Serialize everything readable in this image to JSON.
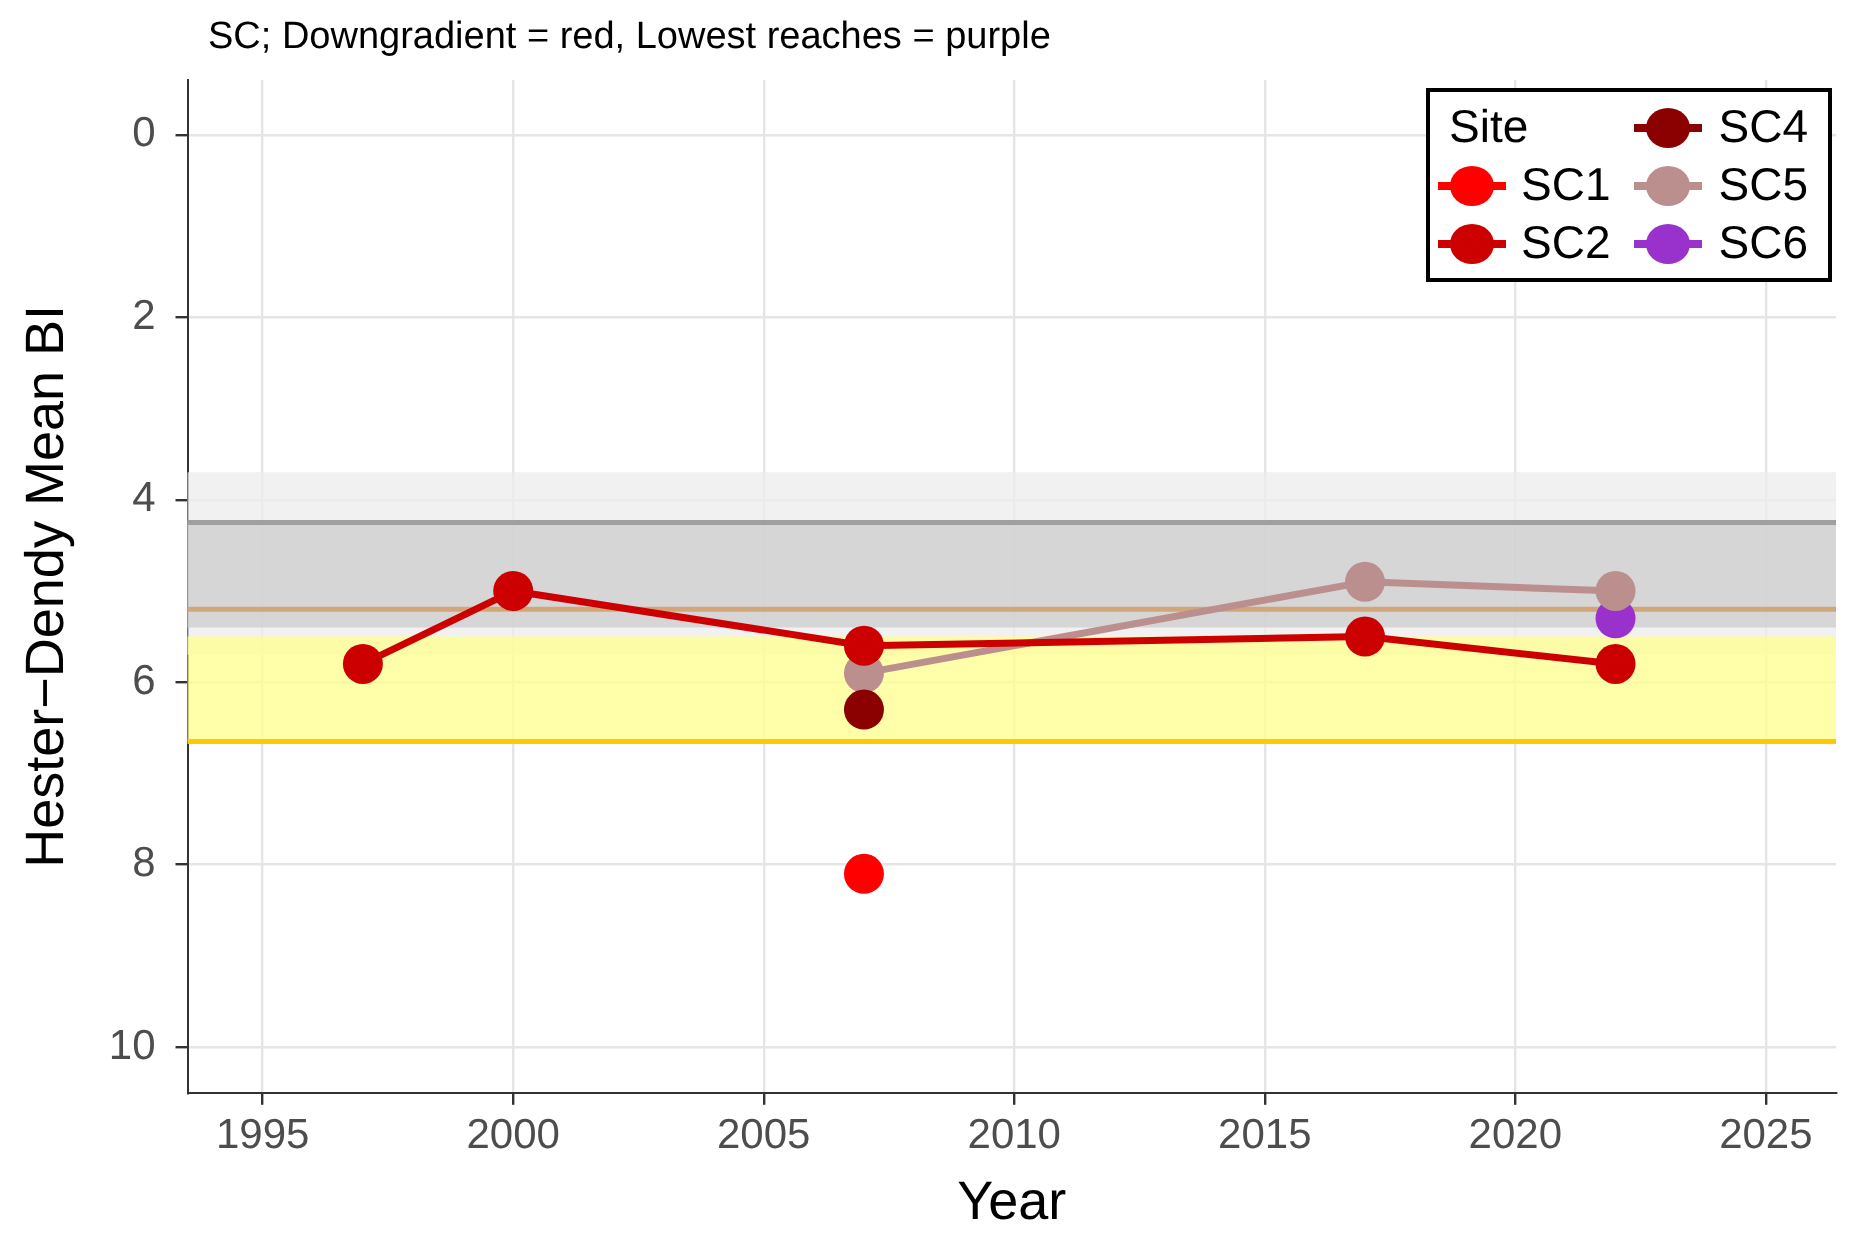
{
  "chart_data": {
    "type": "line",
    "title": "SC; Downgradient = red, Lowest reaches = purple",
    "xlabel": "Year",
    "ylabel": "Hester−Dendy Mean BI",
    "legend_title": "Site",
    "series": [
      {
        "name": "SC1",
        "color": "#ff0000",
        "x": [
          2007
        ],
        "values": [
          8.1
        ]
      },
      {
        "name": "SC2",
        "color": "#cc0000",
        "x": [
          1997,
          2000,
          2007,
          2017,
          2022
        ],
        "values": [
          5.8,
          5.0,
          5.6,
          5.5,
          5.8
        ]
      },
      {
        "name": "SC4",
        "color": "#8b0000",
        "x": [
          2007
        ],
        "values": [
          6.3
        ]
      },
      {
        "name": "SC5",
        "color": "#bc8f8f",
        "x": [
          2007,
          2017,
          2022
        ],
        "values": [
          5.9,
          4.9,
          5.0
        ]
      },
      {
        "name": "SC6",
        "color": "#9932cc",
        "x": [
          2022
        ],
        "values": [
          5.3
        ]
      }
    ],
    "xlim": [
      1993.5,
      2026.4
    ],
    "xticks": [
      1995,
      2000,
      2005,
      2010,
      2015,
      2020,
      2025
    ],
    "ylim": [
      10.5,
      -0.6
    ],
    "yticks": [
      0,
      2,
      4,
      6,
      8,
      10
    ],
    "bands": [
      {
        "axis": "y",
        "from": 3.7,
        "to": 5.7,
        "color": "#ececec"
      },
      {
        "axis": "y",
        "from": 4.25,
        "to": 5.4,
        "color": "#cccccc"
      },
      {
        "axis": "y",
        "from": 5.5,
        "to": 6.65,
        "color": "#ffff8c"
      }
    ],
    "ref_lines": [
      {
        "axis": "y",
        "value": 4.25,
        "color": "#a0a0a0"
      },
      {
        "axis": "y",
        "value": 5.2,
        "color": "#d2a679"
      },
      {
        "axis": "y",
        "value": 6.65,
        "color": "#ffc800"
      }
    ],
    "grid": true,
    "legend": "top right",
    "marker": "circle",
    "line_style": "solid"
  }
}
